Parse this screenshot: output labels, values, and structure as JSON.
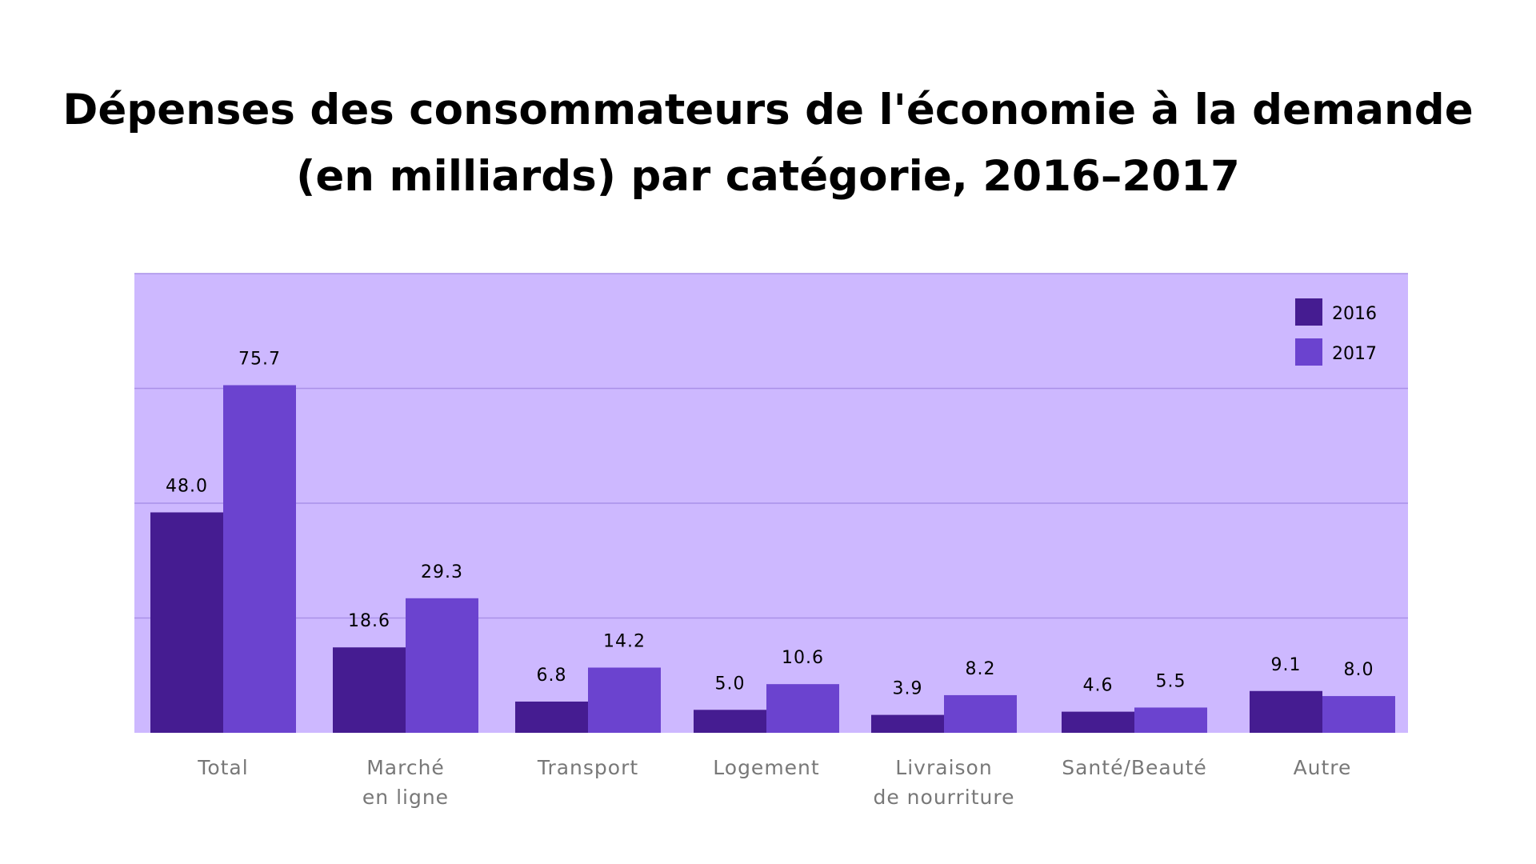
{
  "chart_data": {
    "type": "bar",
    "title": "Dépenses des consommateurs de l'économie à la demande (en milliards) par catégorie, 2016–2017",
    "title_lines": [
      "Dépenses des consommateurs de l'économie à la demande",
      "(en milliards) par catégorie, 2016–2017"
    ],
    "categories": [
      [
        "Total"
      ],
      [
        "Marché",
        "en ligne"
      ],
      [
        "Transport"
      ],
      [
        "Logement"
      ],
      [
        "Livraison",
        "de nourriture"
      ],
      [
        "Santé/Beauté"
      ],
      [
        "Autre"
      ]
    ],
    "series": [
      {
        "name": "2016",
        "color": "#451c91",
        "values": [
          48.0,
          18.6,
          6.8,
          5.0,
          3.9,
          4.6,
          9.1
        ],
        "labels": [
          "48.0",
          "18.6",
          "6.8",
          "5.0",
          "3.9",
          "4.6",
          "9.1"
        ]
      },
      {
        "name": "2017",
        "color": "#6b43cf",
        "values": [
          75.7,
          29.3,
          14.2,
          10.6,
          8.2,
          5.5,
          8.0
        ],
        "labels": [
          "75.7",
          "29.3",
          "14.2",
          "10.6",
          "8.2",
          "5.5",
          "8.0"
        ]
      }
    ],
    "xlabel": "",
    "ylabel": "",
    "ylim": [
      0,
      100
    ],
    "gridlines": [
      25,
      50,
      75,
      100
    ],
    "grid": true,
    "legend_position": "top-right",
    "plot_background": "#cdb8ff",
    "gridline_color": "#aa91e8"
  }
}
